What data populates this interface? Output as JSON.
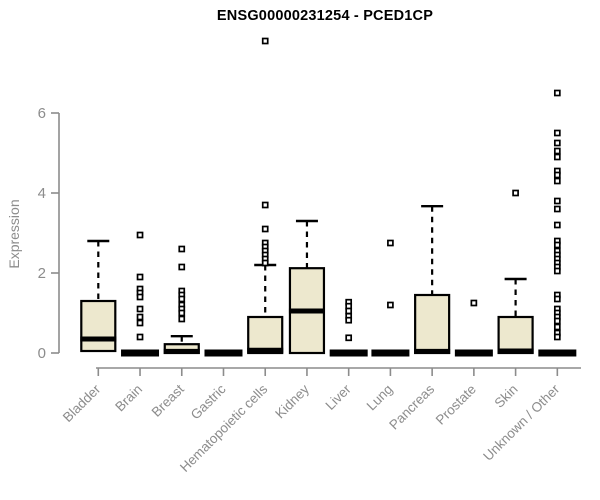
{
  "chart_data": {
    "type": "box",
    "title": "ENSG00000231254 - PCED1CP",
    "ylabel": "Expression",
    "xlabel": "",
    "ylim": [
      0,
      6
    ],
    "yticks": [
      0,
      2,
      4,
      6
    ],
    "grid": false,
    "legend": "none",
    "categories": [
      "Bladder",
      "Brain",
      "Breast",
      "Gastric",
      "Hematopoietic cells",
      "Kidney",
      "Liver",
      "Lung",
      "Pancreas",
      "Prostate",
      "Skin",
      "Unknown / Other"
    ],
    "series": [
      {
        "name": "Bladder",
        "q1": 0.05,
        "median": 0.35,
        "q3": 1.3,
        "whisker_low": 0,
        "whisker_high": 2.8,
        "outliers": []
      },
      {
        "name": "Brain",
        "q1": 0,
        "median": 0,
        "q3": 0,
        "whisker_low": 0,
        "whisker_high": 0,
        "outliers": [
          2.95,
          1.9,
          1.6,
          1.5,
          1.4,
          1.1,
          0.9,
          0.75,
          0.4
        ]
      },
      {
        "name": "Breast",
        "q1": 0,
        "median": 0.04,
        "q3": 0.22,
        "whisker_low": 0,
        "whisker_high": 0.42,
        "outliers": [
          2.6,
          2.15,
          1.55,
          1.45,
          1.35,
          1.2,
          1.1,
          1.0,
          0.85
        ]
      },
      {
        "name": "Gastric",
        "q1": 0,
        "median": 0,
        "q3": 0,
        "whisker_low": 0,
        "whisker_high": 0,
        "outliers": []
      },
      {
        "name": "Hematopoietic cells",
        "q1": 0,
        "median": 0.07,
        "q3": 0.9,
        "whisker_low": 0,
        "whisker_high": 2.2,
        "outliers": [
          7.8,
          3.7,
          3.1,
          2.75,
          2.65,
          2.55,
          2.45,
          2.35,
          2.25
        ]
      },
      {
        "name": "Kidney",
        "q1": 0,
        "median": 1.05,
        "q3": 2.12,
        "whisker_low": 0,
        "whisker_high": 3.3,
        "outliers": []
      },
      {
        "name": "Liver",
        "q1": 0,
        "median": 0,
        "q3": 0,
        "whisker_low": 0,
        "whisker_high": 0,
        "outliers": [
          1.27,
          1.17,
          1.05,
          0.92,
          0.82,
          0.38
        ]
      },
      {
        "name": "Lung",
        "q1": 0,
        "median": 0,
        "q3": 0,
        "whisker_low": 0,
        "whisker_high": 0,
        "outliers": [
          2.75,
          1.2
        ]
      },
      {
        "name": "Pancreas",
        "q1": 0,
        "median": 0.04,
        "q3": 1.45,
        "whisker_low": 0,
        "whisker_high": 3.67,
        "outliers": []
      },
      {
        "name": "Prostate",
        "q1": 0,
        "median": 0,
        "q3": 0,
        "whisker_low": 0,
        "whisker_high": 0,
        "outliers": [
          1.25
        ]
      },
      {
        "name": "Skin",
        "q1": 0,
        "median": 0.05,
        "q3": 0.9,
        "whisker_low": 0,
        "whisker_high": 1.85,
        "outliers": [
          4.0
        ]
      },
      {
        "name": "Unknown / Other",
        "q1": 0,
        "median": 0,
        "q3": 0,
        "whisker_low": 0,
        "whisker_high": 0,
        "outliers": [
          6.5,
          5.5,
          5.25,
          5.05,
          4.9,
          4.55,
          4.45,
          4.3,
          3.8,
          3.6,
          3.2,
          2.8,
          2.7,
          2.55,
          2.45,
          2.35,
          2.25,
          2.15,
          2.05,
          1.45,
          1.35,
          1.1,
          1.0,
          0.9,
          0.8,
          0.65,
          0.5,
          0.4
        ]
      }
    ],
    "colors": {
      "box_fill": "#EDE8CE",
      "box_stroke": "#000000",
      "median": "#000000",
      "axis": "#8C8C8C",
      "tick_label": "#8C8C8C",
      "title": "#000000",
      "outlier_fill": "#FFFFFF",
      "outlier_stroke": "#000000"
    }
  }
}
